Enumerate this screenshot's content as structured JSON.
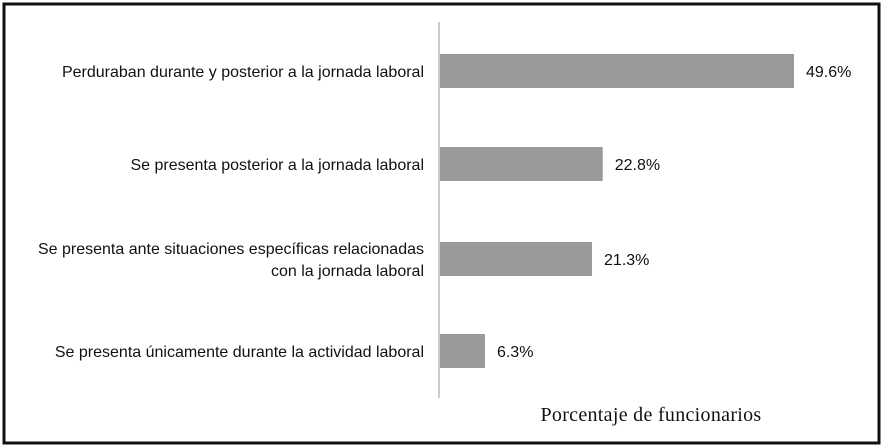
{
  "chart_data": {
    "type": "bar",
    "orientation": "horizontal",
    "categories": [
      [
        "Perduraban durante y posterior a la jornada laboral"
      ],
      [
        "Se presenta posterior a la jornada laboral"
      ],
      [
        "Se presenta ante situaciones específicas relacionadas",
        "con la jornada laboral"
      ],
      [
        "Se presenta únicamente durante la actividad laboral"
      ]
    ],
    "values": [
      49.6,
      22.8,
      21.3,
      6.3
    ],
    "value_labels": [
      "49.6%",
      "22.8%",
      "21.3%",
      "6.3%"
    ],
    "xlabel": "Porcentaje de funcionarios",
    "xlim": [
      0,
      55
    ],
    "grid": false,
    "bar_color": "#9a9a9a"
  }
}
